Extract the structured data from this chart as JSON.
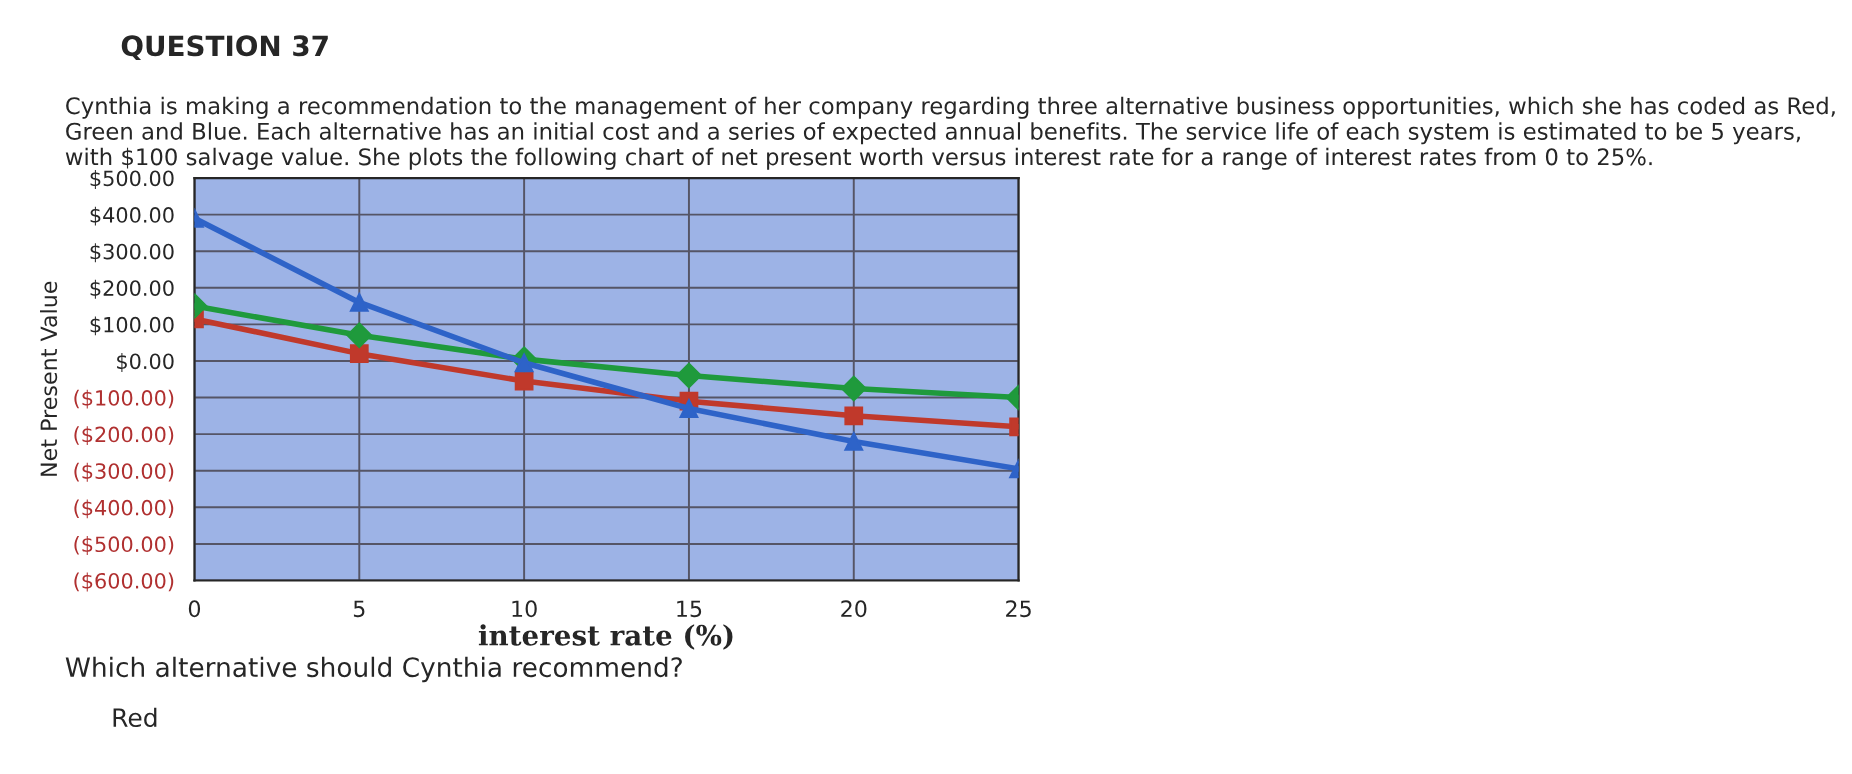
{
  "chart_data": {
    "type": "line",
    "title": "QUESTION 37",
    "subtitle": "Cynthia is making a recommendation to the management of her company regarding three alternative business opportunities, which she has coded as Red, Green and Blue. Each alternative has an initial cost and a series of expected annual benefits. The service life of each system is estimated to be 5 years, with $100 salvage value. She plots the following chart of net present worth versus interest rate for a range of interest rates from 0 to 25%.",
    "xlabel": "interest rate (%)",
    "ylabel": "Net Present Value",
    "x": [
      0,
      5,
      10,
      15,
      20,
      25
    ],
    "series": [
      {
        "color": "#2e63c8",
        "marker": "triangle",
        "values": [
          390,
          160,
          -5,
          -130,
          -220,
          -295
        ]
      },
      {
        "color": "#1f9a3c",
        "marker": "diamond",
        "values": [
          150,
          70,
          5,
          -40,
          -75,
          -100
        ]
      },
      {
        "color": "#c0392b",
        "marker": "square",
        "values": [
          115,
          20,
          -55,
          -110,
          -150,
          -180
        ]
      }
    ],
    "xlim": [
      0,
      25
    ],
    "xticks": [
      0,
      5,
      10,
      15,
      20,
      25
    ],
    "ylim": [
      -600,
      500
    ],
    "yticks": [
      {
        "value": 500,
        "label": "$500.00"
      },
      {
        "value": 400,
        "label": "$400.00"
      },
      {
        "value": 300,
        "label": "$300.00"
      },
      {
        "value": 200,
        "label": "$200.00"
      },
      {
        "value": 100,
        "label": "$100.00"
      },
      {
        "value": 0,
        "label": "$0.00"
      },
      {
        "value": -100,
        "label": "($100.00)"
      },
      {
        "value": -200,
        "label": "($200.00)"
      },
      {
        "value": -300,
        "label": "($300.00)"
      },
      {
        "value": -400,
        "label": "($400.00)"
      },
      {
        "value": -500,
        "label": "($500.00)"
      },
      {
        "value": -600,
        "label": "($600.00)"
      }
    ],
    "grid": true,
    "legend": false,
    "line_style": "solid",
    "annotations": [
      "Which alternative should Cynthia recommend?",
      "Red"
    ]
  }
}
